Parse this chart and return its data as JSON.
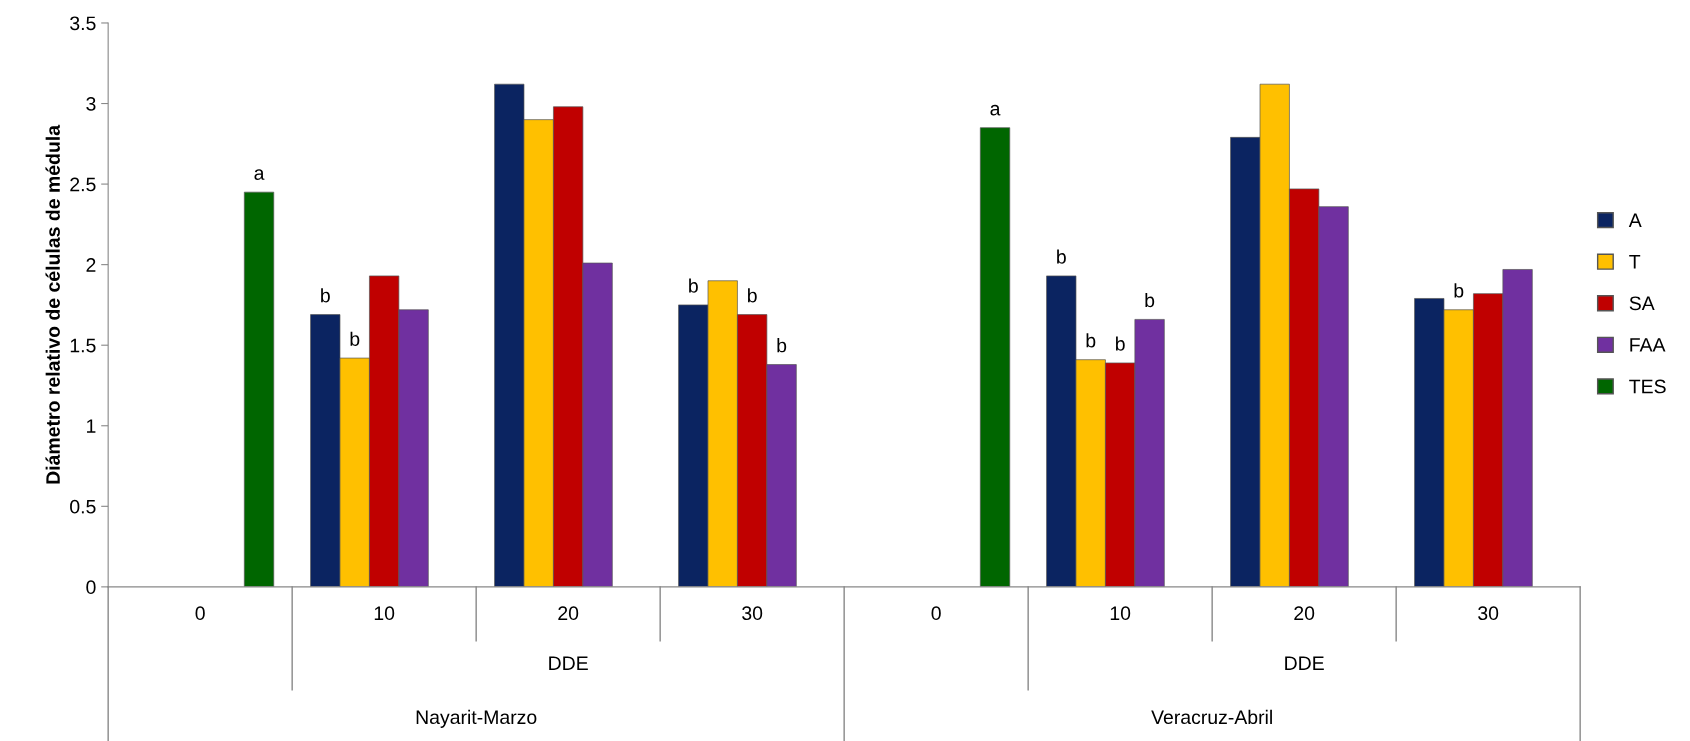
{
  "chart_data": {
    "type": "bar",
    "ylabel": "Diámetro relativo de células de médula",
    "categories": [
      "0",
      "10",
      "20",
      "30",
      "0",
      "10",
      "20",
      "30"
    ],
    "series": [
      {
        "name": "A",
        "color": "#0b2461",
        "values": [
          null,
          1.69,
          3.12,
          1.75,
          null,
          1.93,
          2.79,
          1.79
        ],
        "value_labels": [
          null,
          "b",
          null,
          "b",
          null,
          "b",
          null,
          null
        ]
      },
      {
        "name": "T",
        "color": "#ffc000",
        "values": [
          null,
          1.42,
          2.9,
          1.9,
          null,
          1.41,
          3.12,
          1.72
        ],
        "value_labels": [
          null,
          "b",
          null,
          null,
          null,
          "b",
          null,
          "b"
        ]
      },
      {
        "name": "SA",
        "color": "#c00000",
        "values": [
          null,
          1.93,
          2.98,
          1.69,
          null,
          1.39,
          2.47,
          1.82
        ],
        "value_labels": [
          null,
          null,
          null,
          "b",
          null,
          "b",
          null,
          null
        ]
      },
      {
        "name": "FAA",
        "color": "#7030a0",
        "values": [
          null,
          1.72,
          2.01,
          1.38,
          null,
          1.66,
          2.36,
          1.97
        ],
        "value_labels": [
          null,
          null,
          null,
          "b",
          null,
          "b",
          null,
          null
        ]
      },
      {
        "name": "TES",
        "color": "#006600",
        "values": [
          2.45,
          null,
          null,
          null,
          2.85,
          null,
          null,
          null
        ],
        "value_labels": [
          "a",
          null,
          null,
          null,
          "a",
          null,
          null,
          null
        ]
      }
    ],
    "annotations": [
      "DDE",
      "DDE",
      "Nayarit-Marzo",
      "Veracruz-Abril"
    ],
    "ylim": [
      0,
      3.5
    ],
    "yticks": [
      0,
      0.5,
      1,
      1.5,
      2,
      2.5,
      3,
      3.5
    ],
    "grid": false,
    "legend": "right"
  }
}
